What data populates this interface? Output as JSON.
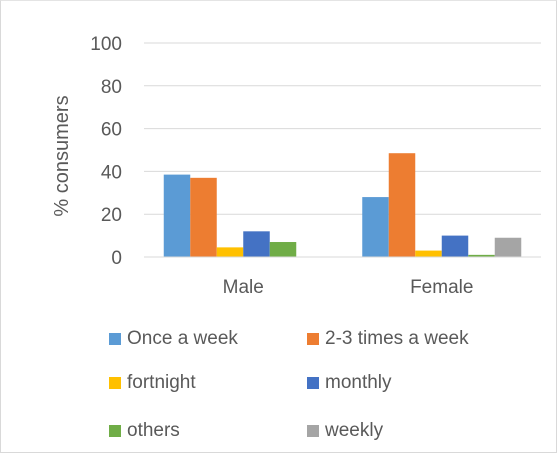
{
  "chart_data": {
    "type": "bar",
    "categories": [
      "Male",
      "Female"
    ],
    "ylabel": "% consumers",
    "ylim": [
      0,
      100
    ],
    "yticks": [
      0,
      20,
      40,
      60,
      80,
      100
    ],
    "grid": true,
    "legend_position": "bottom",
    "series": [
      {
        "name": "Once a week",
        "color": "#5B9BD5",
        "values": [
          38.5,
          28
        ]
      },
      {
        "name": "2-3 times a week",
        "color": "#ED7D31",
        "values": [
          37,
          48.5
        ]
      },
      {
        "name": "fortnight",
        "color": "#FFC000",
        "values": [
          4.5,
          3
        ]
      },
      {
        "name": "monthly",
        "color": "#4472C4",
        "values": [
          12,
          10
        ]
      },
      {
        "name": "others",
        "color": "#70AD47",
        "values": [
          7,
          1
        ]
      },
      {
        "name": "weekly",
        "color": "#A5A5A5",
        "values": [
          0,
          9
        ]
      }
    ]
  }
}
